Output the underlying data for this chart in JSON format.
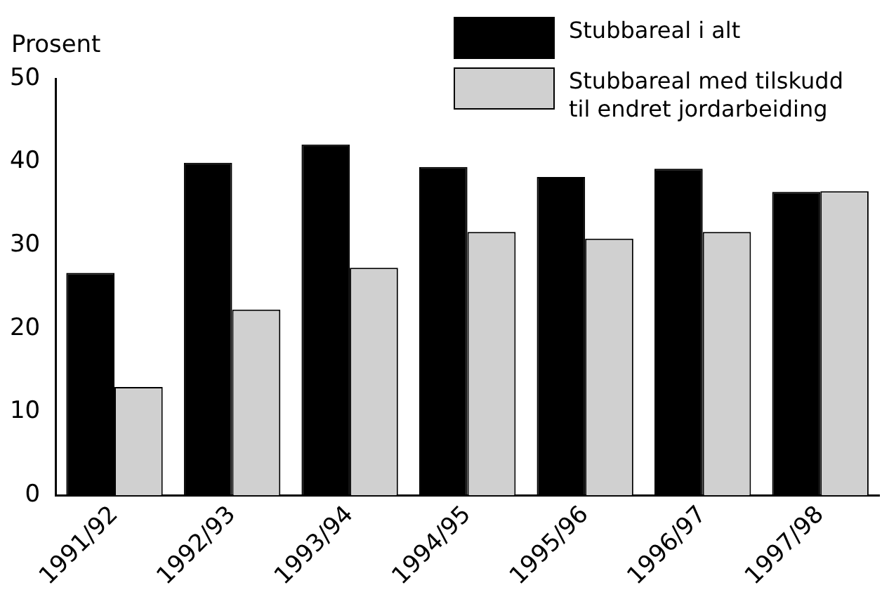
{
  "chart_data": {
    "type": "bar",
    "ylabel": "Prosent",
    "categories": [
      "1991/92",
      "1992/93",
      "1993/94",
      "1994/95",
      "1995/96",
      "1996/97",
      "1997/98"
    ],
    "series": [
      {
        "name": "Stubbareal i alt",
        "color": "#000000",
        "values": [
          26.7,
          39.9,
          42.1,
          39.4,
          38.2,
          39.2,
          36.4
        ]
      },
      {
        "name": "Stubbareal med tilskudd til endret jordarbeiding",
        "color": "#d0d0d0",
        "values": [
          13.0,
          22.3,
          27.3,
          31.6,
          30.8,
          31.6,
          36.5
        ]
      }
    ],
    "ylim": [
      0,
      50
    ],
    "yticks": [
      0,
      10,
      20,
      30,
      40,
      50
    ],
    "grid": false,
    "legend": "top right"
  }
}
